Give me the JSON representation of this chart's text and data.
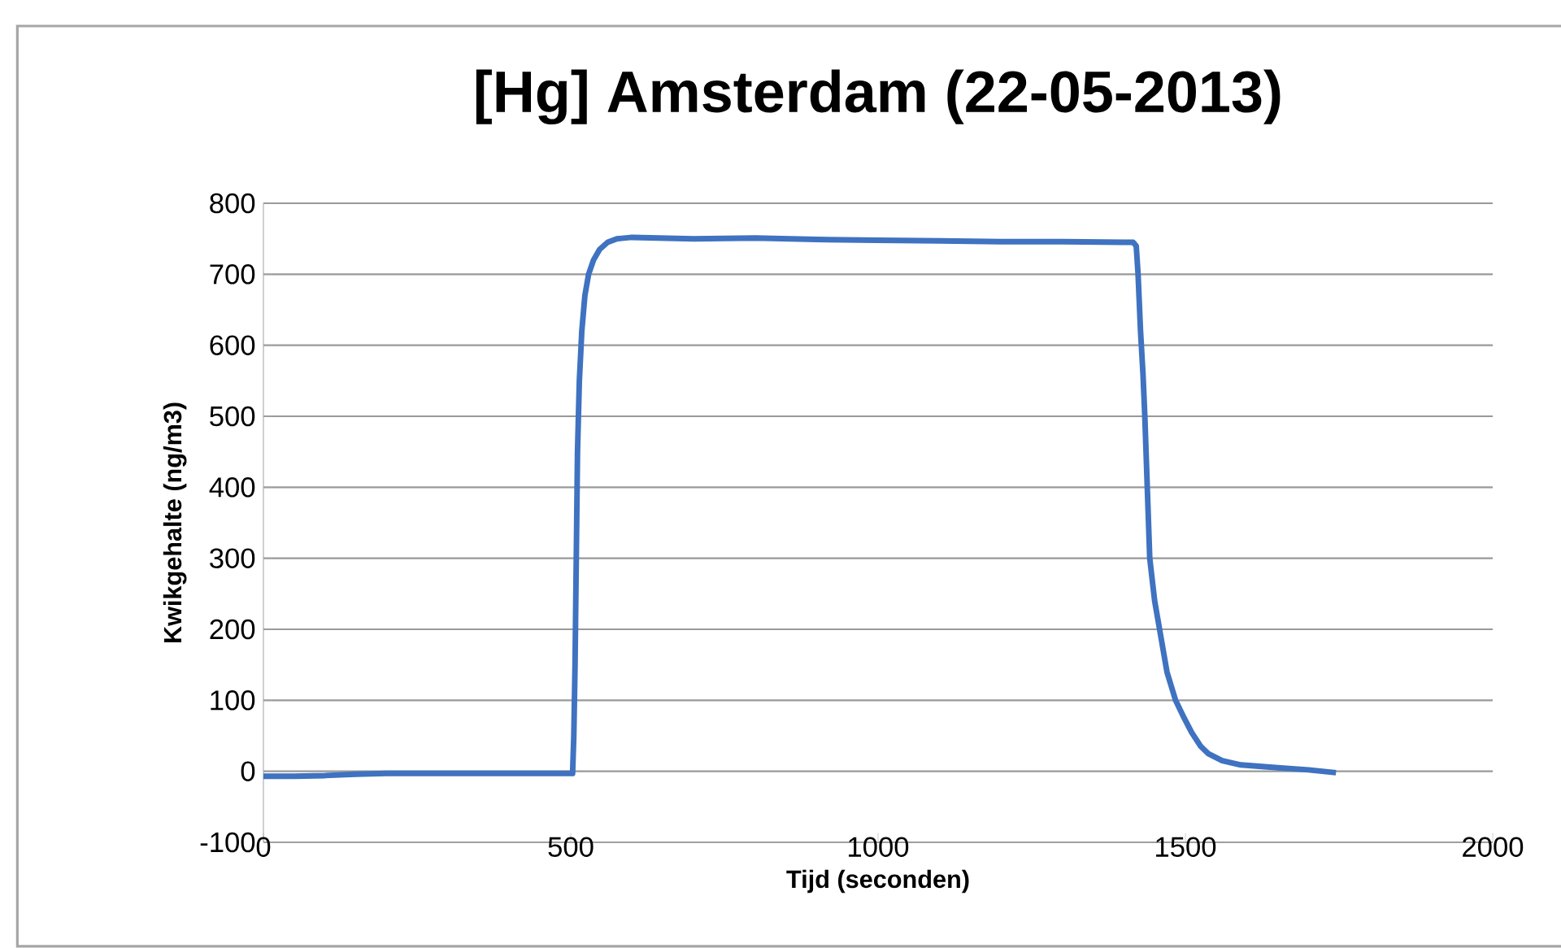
{
  "chart_data": {
    "type": "line",
    "title": "[Hg] Amsterdam (22-05-2013)",
    "xlabel": "Tijd (seconden)",
    "ylabel": "Kwikgehalte (ng/m3)",
    "series": [
      {
        "color": "#3f72c0",
        "x": [
          0,
          50,
          100,
          150,
          200,
          300,
          400,
          480,
          503,
          505,
          507,
          509,
          511,
          514,
          518,
          523,
          529,
          537,
          547,
          560,
          575,
          600,
          700,
          800,
          900,
          1000,
          1100,
          1200,
          1300,
          1400,
          1415,
          1420,
          1423,
          1427,
          1431,
          1434,
          1438,
          1442,
          1450,
          1458,
          1470,
          1484,
          1498,
          1510,
          1525,
          1537,
          1560,
          1590,
          1620,
          1650,
          1700,
          1745
        ],
        "values": [
          -7,
          -7,
          -6,
          -4,
          -3,
          -3,
          -3,
          -3,
          -3,
          50,
          150,
          300,
          450,
          550,
          620,
          670,
          700,
          720,
          735,
          745,
          750,
          752,
          750,
          751,
          749,
          748,
          747,
          746,
          746,
          745,
          745,
          740,
          700,
          620,
          560,
          500,
          400,
          300,
          240,
          200,
          140,
          100,
          75,
          55,
          35,
          25,
          15,
          9,
          7,
          5,
          2,
          -2
        ]
      }
    ],
    "xlim": [
      0,
      2000
    ],
    "xticks": [
      0,
      500,
      1000,
      1500,
      2000
    ],
    "ylim": [
      -100,
      800
    ],
    "yticks": [
      -100,
      0,
      100,
      200,
      300,
      400,
      500,
      600,
      700,
      800
    ],
    "grid": "y",
    "marker": "none"
  }
}
